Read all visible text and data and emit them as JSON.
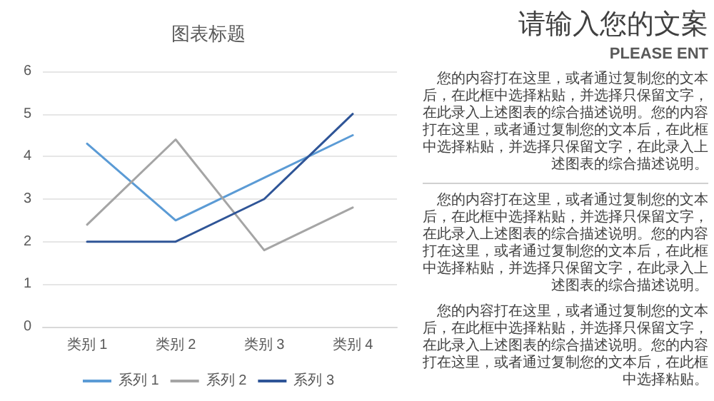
{
  "chart_data": {
    "type": "line",
    "title": "图表标题",
    "categories": [
      "类别 1",
      "类别 2",
      "类别 3",
      "类别 4"
    ],
    "series": [
      {
        "name": "系列 1",
        "color": "#5b9bd5",
        "values": [
          4.3,
          2.5,
          3.5,
          4.5
        ]
      },
      {
        "name": "系列 2",
        "color": "#a5a5a5",
        "values": [
          2.4,
          4.4,
          1.8,
          2.8
        ]
      },
      {
        "name": "系列 3",
        "color": "#2f5597",
        "values": [
          2,
          2,
          3,
          5
        ]
      }
    ],
    "ylim": [
      0,
      6
    ],
    "yticks": [
      0,
      1,
      2,
      3,
      4,
      5,
      6
    ],
    "grid": "y",
    "legend": "bottom",
    "marker": "none",
    "line_style": "solid",
    "annotations": [
      "请输入您的文案",
      "PLEASE ENT",
      "您的内容打在这里，或者通过复制您的文本后，在此框中选择粘贴，并选择只保留文字，在此录入上述图表的综合描述说明。您的内容打在这里，或者通过复制您的文本后，在此框中选择粘贴，并选择只保留文字，在此录入上述图表的综合描述说明。",
      "您的内容打在这里，或者通过复制您的文本后，在此框中选择粘贴，并选择只保留文字，在此录入上述图表的综合描述说明。您的内容打在这里，或者通过复制您的文本后，在此框中选择粘贴，并选择只保留文字，在此录入上述图表的综合描述说明。",
      "您的内容打在这里，或者通过复制您的文本后，在此框中选择粘贴，并选择只保留文字，在此录入上述图表的综合描述说明。您的内容打在这里，或者通过复制您的文本后，在此框中选择粘贴。"
    ]
  }
}
